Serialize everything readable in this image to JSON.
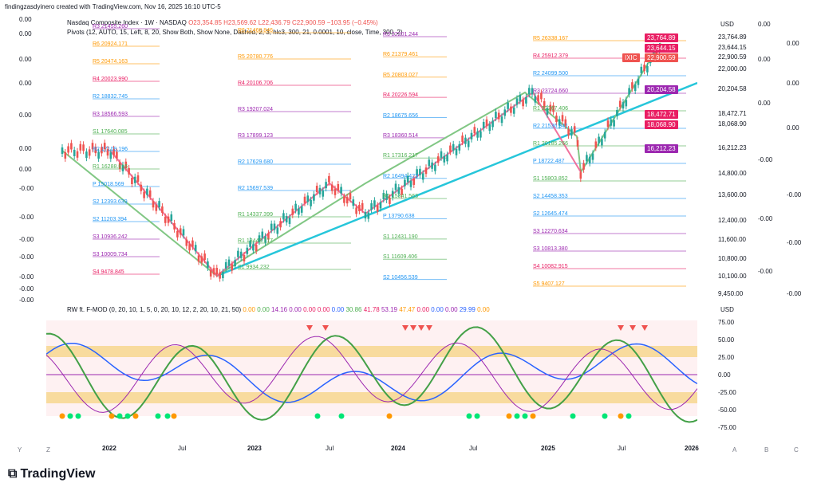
{
  "header": {
    "title": "findingzasdyinero created with TradingView.com, Nov 16, 2025 16:10 UTC-5"
  },
  "legend_main": {
    "symbol": "Nasdaq Composite Index · 1W · NASDAQ",
    "open": "O23,354.85",
    "high": "H23,569.62",
    "low": "L22,436.79",
    "close": "C22,900.59",
    "change": "−103.95 (−0.45%)",
    "pivots": "Pivots (12, AUTO, 15, Left, 8, 20, Show Both, Show None, Dashed, 2, 3, hlc3, 300, 21, 0.0001, 10, close, Time, 300, 2)"
  },
  "legend_osc": {
    "name": "RW ft. F-MOD (0, 20, 10, 1, 5, 0, 20, 10, 12, 2, 20, 10, 21, 50)",
    "values": [
      "0.00",
      "0.00",
      "14.16",
      "0.00",
      "0.00",
      "0.00",
      "0.00",
      "30.86",
      "41.78",
      "53.19",
      "47.47",
      "0.00",
      "0.00",
      "0.00",
      "29.99",
      "0.00"
    ]
  },
  "currency": "USD",
  "currency_osc": "USD",
  "price_axis": [
    "23,764.89",
    "23,644.15",
    "22,900.59",
    "22,000.00",
    "20,204.58",
    "18,472.71",
    "18,068.90",
    "16,212.23",
    "14,800.00",
    "13,600.00",
    "12,400.00",
    "11,600.00",
    "10,800.00",
    "10,100.00",
    "9,450.00"
  ],
  "price_tags": {
    "high": "23,764.89",
    "h2": "23,644.15",
    "last": "22,900.59",
    "ticker": "IXIC",
    "p1": "20,204.58",
    "p2": "18,472.71",
    "p3": "18,068.90",
    "p4": "16,212.23"
  },
  "osc_axis": [
    "75.00",
    "50.00",
    "25.00",
    "0.00",
    "-25.00",
    "-50.00",
    "-75.00"
  ],
  "left_axis": [
    "0.00",
    "0.00",
    "0.00",
    "0.00",
    "0.00",
    "0.00",
    "0.00",
    "-0.00",
    "-0.00",
    "-0.00",
    "-0.00",
    "-0.00",
    "-0.00",
    "-0.00"
  ],
  "right_axis": [
    "0.00",
    "0.00",
    "0.00",
    "0.00",
    "0.00",
    "0.00",
    "-0.00",
    "-0.00",
    "-0.00",
    "-0.00",
    "-0.00",
    "-0.00"
  ],
  "time_axis": [
    "2022",
    "Jul",
    "2023",
    "Jul",
    "2024",
    "Jul",
    "2025",
    "Jul",
    "2026"
  ],
  "pivot_labels": [
    {
      "k": "R3",
      "v": "21455.260",
      "c": "#9c27b0"
    },
    {
      "k": "R6",
      "v": "20924.171",
      "c": "#ff9800"
    },
    {
      "k": "R5",
      "v": "20474.163",
      "c": "#ff9800"
    },
    {
      "k": "R4",
      "v": "20023.990",
      "c": "#e91e63"
    },
    {
      "k": "R2",
      "v": "18832.745",
      "c": "#2196f3"
    },
    {
      "k": "R3",
      "v": "18566.593",
      "c": "#9c27b0"
    },
    {
      "k": "S1",
      "v": "17640.085",
      "c": "#4caf50"
    },
    {
      "k": "R2",
      "v": "17109.196",
      "c": "#2196f3"
    },
    {
      "k": "R1",
      "v": "16288.815",
      "c": "#4caf50"
    },
    {
      "k": "P",
      "v": "15018.569",
      "c": "#2196f3"
    },
    {
      "k": "S2",
      "v": "12393.639",
      "c": "#2196f3"
    },
    {
      "k": "S2",
      "v": "11203.394",
      "c": "#2196f3"
    },
    {
      "k": "S3",
      "v": "10936.242",
      "c": "#9c27b0"
    },
    {
      "k": "S3",
      "v": "10009.734",
      "c": "#9c27b0"
    },
    {
      "k": "S4",
      "v": "9478.845",
      "c": "#e91e63"
    },
    {
      "k": "R6",
      "v": "21460.846",
      "c": "#ff9800"
    },
    {
      "k": "R5",
      "v": "20780.776",
      "c": "#ff9800"
    },
    {
      "k": "R4",
      "v": "20106.706",
      "c": "#e91e63"
    },
    {
      "k": "R3",
      "v": "19207.024",
      "c": "#9c27b0"
    },
    {
      "k": "R3",
      "v": "17899.123",
      "c": "#9c27b0"
    },
    {
      "k": "R2",
      "v": "17629.680",
      "c": "#2196f3"
    },
    {
      "k": "R2",
      "v": "15697.539",
      "c": "#2196f3"
    },
    {
      "k": "R1",
      "v": "14337.399",
      "c": "#4caf50"
    },
    {
      "k": "R1",
      "v": "13443.717",
      "c": "#4caf50"
    },
    {
      "k": "S1",
      "v": "9934.232",
      "c": "#4caf50"
    },
    {
      "k": "R3",
      "v": "22201.244",
      "c": "#9c27b0"
    },
    {
      "k": "R6",
      "v": "21379.461",
      "c": "#ff9800"
    },
    {
      "k": "R5",
      "v": "20803.027",
      "c": "#ff9800"
    },
    {
      "k": "R4",
      "v": "20226.594",
      "c": "#e91e63"
    },
    {
      "k": "R2",
      "v": "18675.656",
      "c": "#2196f3"
    },
    {
      "k": "R3",
      "v": "18360.514",
      "c": "#9c27b0"
    },
    {
      "k": "R1",
      "v": "17316.217",
      "c": "#4caf50"
    },
    {
      "k": "R2",
      "v": "16494.423",
      "c": "#2196f3"
    },
    {
      "k": "R1",
      "v": "15341.563",
      "c": "#4caf50"
    },
    {
      "k": "P",
      "v": "13790.638",
      "c": "#2196f3"
    },
    {
      "k": "S1",
      "v": "12431.190",
      "c": "#4caf50"
    },
    {
      "k": "S1",
      "v": "11609.406",
      "c": "#4caf50"
    },
    {
      "k": "S2",
      "v": "10456.539",
      "c": "#2196f3"
    },
    {
      "k": "R5",
      "v": "26338.167",
      "c": "#ff9800"
    },
    {
      "k": "R4",
      "v": "25912.379",
      "c": "#e91e63"
    },
    {
      "k": "R2",
      "v": "24099.500",
      "c": "#2196f3"
    },
    {
      "k": "R3",
      "v": "23724.660",
      "c": "#9c27b0"
    },
    {
      "k": "R1",
      "v": "22267.406",
      "c": "#4caf50"
    },
    {
      "k": "R2",
      "v": "21536.941",
      "c": "#2196f3"
    },
    {
      "k": "R1",
      "v": "20185.266",
      "c": "#4caf50"
    },
    {
      "k": "P",
      "v": "18722.487",
      "c": "#2196f3"
    },
    {
      "k": "S1",
      "v": "15803.852",
      "c": "#4caf50"
    },
    {
      "k": "S2",
      "v": "14458.353",
      "c": "#2196f3"
    },
    {
      "k": "S2",
      "v": "12645.474",
      "c": "#2196f3"
    },
    {
      "k": "S3",
      "v": "12270.634",
      "c": "#9c27b0"
    },
    {
      "k": "S3",
      "v": "10813.380",
      "c": "#9c27b0"
    },
    {
      "k": "S4",
      "v": "10082.915",
      "c": "#e91e63"
    },
    {
      "k": "S5",
      "v": "9407.127",
      "c": "#ff9800"
    }
  ],
  "bottom": {
    "brand": "TradingView",
    "left_btns": [
      "Y",
      "Z"
    ],
    "right_btns": [
      "A",
      "B",
      "C"
    ]
  }
}
